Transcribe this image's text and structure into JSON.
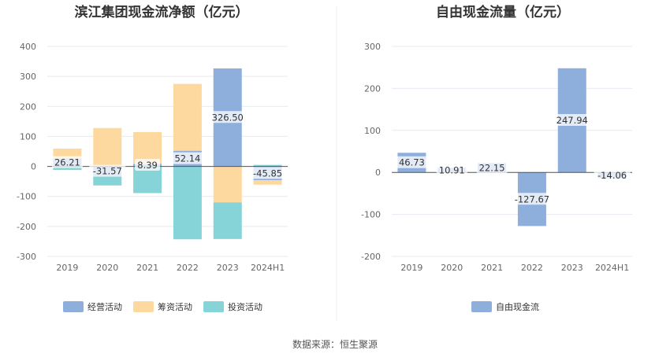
{
  "source": "数据来源：恒生聚源",
  "chart_data": [
    {
      "type": "bar",
      "stacked": true,
      "title": "滨江集团现金流净额（亿元）",
      "categories": [
        "2019",
        "2020",
        "2021",
        "2022",
        "2023",
        "2024H1"
      ],
      "yticks": [
        "400",
        "300",
        "200",
        "100",
        "0",
        "-100",
        "-200",
        "-300"
      ],
      "ylim": [
        -300,
        400
      ],
      "grid": true,
      "legend_position": "bottom",
      "series": [
        {
          "name": "经营活动",
          "color": "#8eaedc",
          "values": [
            26.21,
            -31.57,
            8.39,
            52.14,
            326.5,
            -45.85
          ]
        },
        {
          "name": "筹资活动",
          "color": "#fdd9a0",
          "values": [
            33,
            128,
            106,
            223,
            -120,
            -15
          ]
        },
        {
          "name": "投资活动",
          "color": "#86d4d8",
          "values": [
            -12,
            -32,
            -89,
            -243,
            -122,
            5
          ]
        }
      ],
      "data_labels": [
        "26.21",
        "-31.57",
        "8.39",
        "52.14",
        "326.50",
        "-45.85"
      ]
    },
    {
      "type": "bar",
      "title": "自由现金流量（亿元）",
      "categories": [
        "2019",
        "2020",
        "2021",
        "2022",
        "2023",
        "2024H1"
      ],
      "yticks": [
        "300",
        "200",
        "100",
        "0",
        "-100",
        "-200"
      ],
      "ylim": [
        -200,
        300
      ],
      "grid": true,
      "legend_position": "bottom",
      "series": [
        {
          "name": "自由现金流",
          "color": "#8eaedc",
          "values": [
            46.73,
            10.91,
            22.15,
            -127.67,
            247.94,
            -14.06
          ]
        }
      ],
      "data_labels": [
        "46.73",
        "10.91",
        "22.15",
        "-127.67",
        "247.94",
        "-14.06"
      ]
    }
  ]
}
